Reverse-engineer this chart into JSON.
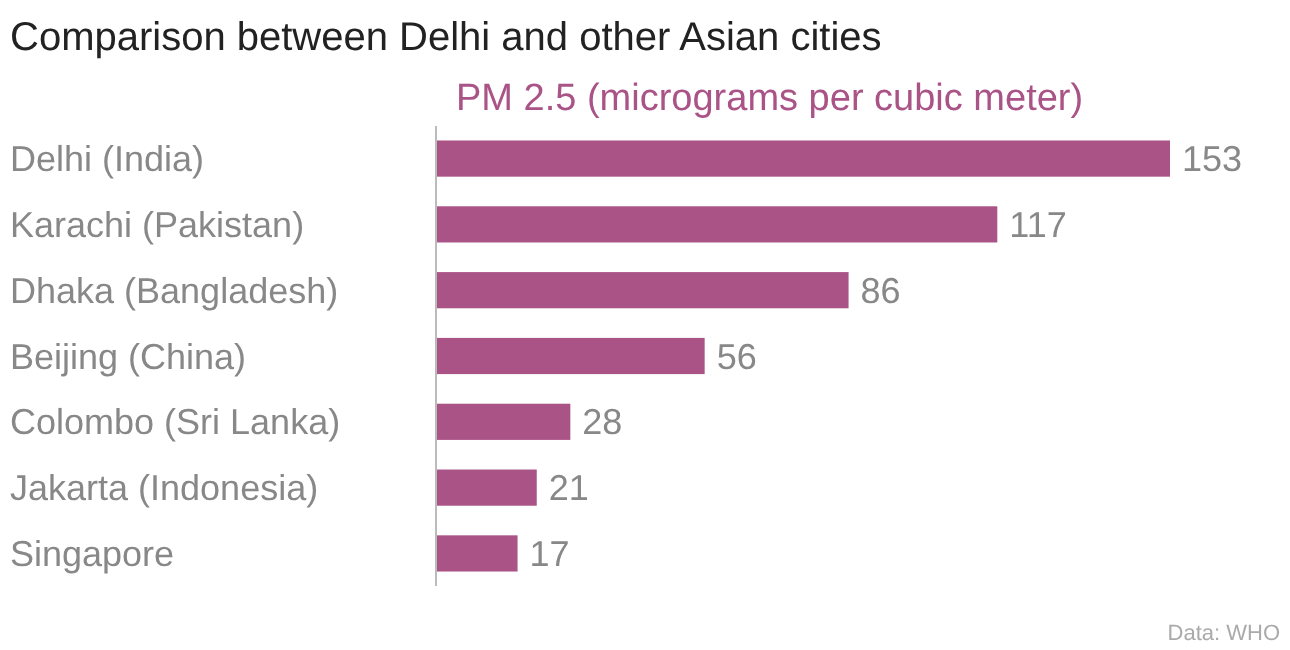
{
  "chart_data": {
    "type": "bar",
    "orientation": "horizontal",
    "title": "Comparison between Delhi and other Asian cities",
    "xlabel": "PM 2.5 (micrograms per cubic meter)",
    "categories": [
      "Delhi (India)",
      "Karachi (Pakistan)",
      "Dhaka (Bangladesh)",
      "Beijing (China)",
      "Colombo (Sri Lanka)",
      "Jakarta (Indonesia)",
      "Singapore"
    ],
    "values": [
      153,
      117,
      86,
      56,
      28,
      21,
      17
    ],
    "color": "#aa5387",
    "data_labels": true,
    "annotations": [
      "Data: WHO"
    ]
  }
}
